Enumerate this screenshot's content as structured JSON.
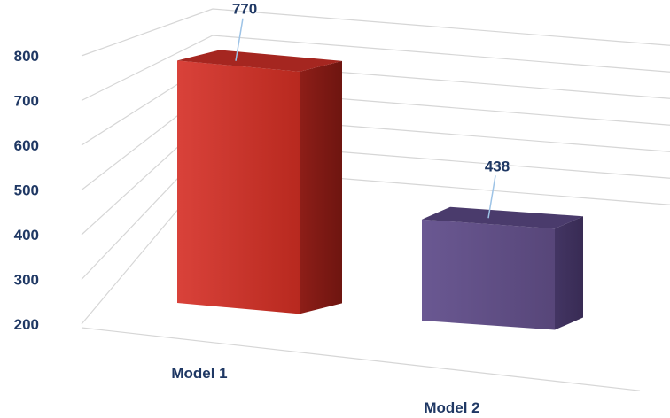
{
  "chart_data": {
    "type": "bar",
    "categories": [
      "Model 1",
      "Model 2"
    ],
    "values": [
      770,
      438
    ],
    "ylim": [
      200,
      800
    ],
    "yticks": [
      200,
      300,
      400,
      500,
      600,
      700,
      800
    ],
    "data_labels": [
      "770",
      "438"
    ],
    "grid": true,
    "legend": "none",
    "colors": [
      "#c0302a",
      "#5c4a82"
    ]
  }
}
